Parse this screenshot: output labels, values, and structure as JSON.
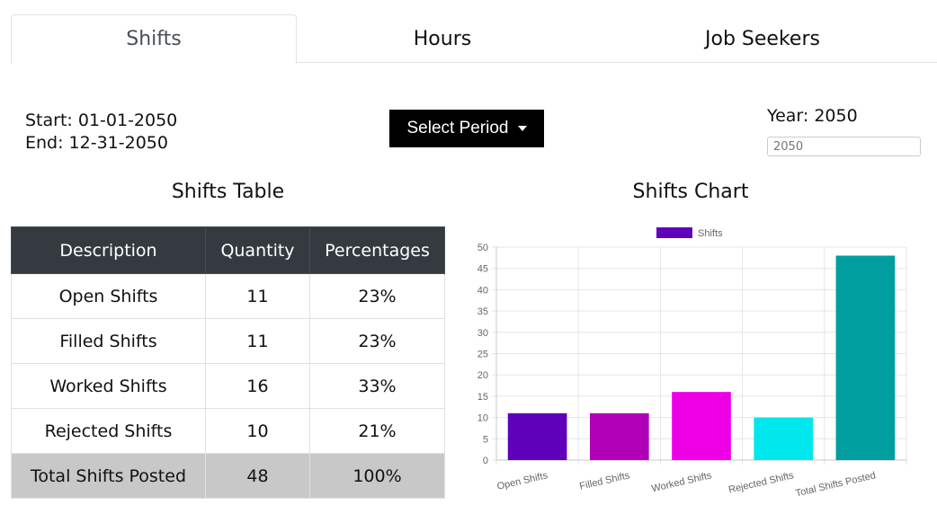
{
  "tabs": [
    {
      "label": "Shifts",
      "active": true
    },
    {
      "label": "Hours",
      "active": false
    },
    {
      "label": "Job Seekers",
      "active": false
    }
  ],
  "period": {
    "start": "Start: 01-01-2050",
    "end": "End: 12-31-2050",
    "select_label": "Select Period",
    "year_label": "Year: 2050",
    "year_input_placeholder": "2050"
  },
  "table": {
    "title": "Shifts Table",
    "headers": [
      "Description",
      "Quantity",
      "Percentages"
    ],
    "rows": [
      {
        "description": "Open Shifts",
        "quantity": "11",
        "percentage": "23%"
      },
      {
        "description": "Filled Shifts",
        "quantity": "11",
        "percentage": "23%"
      },
      {
        "description": "Worked Shifts",
        "quantity": "16",
        "percentage": "33%"
      },
      {
        "description": "Rejected Shifts",
        "quantity": "10",
        "percentage": "21%"
      },
      {
        "description": "Total Shifts Posted",
        "quantity": "48",
        "percentage": "100%"
      }
    ]
  },
  "chart_title": "Shifts Chart",
  "chart_data": {
    "type": "bar",
    "title": "",
    "categories": [
      "Open Shifts",
      "Filled Shifts",
      "Worked Shifts",
      "Rejected Shifts",
      "Total Shifts Posted"
    ],
    "series": [
      {
        "name": "Shifts",
        "values": [
          11,
          11,
          16,
          10,
          48
        ]
      }
    ],
    "colors": [
      "#5f00bb",
      "#b000b7",
      "#ee00e6",
      "#00e8ee",
      "#009e9e"
    ],
    "legend_color": "#5f00bb",
    "ylim": [
      0,
      50
    ],
    "yticks": [
      0,
      5,
      10,
      15,
      20,
      25,
      30,
      35,
      40,
      45,
      50
    ],
    "grid": true,
    "legend": "top-center",
    "xlabel": "",
    "ylabel": ""
  }
}
